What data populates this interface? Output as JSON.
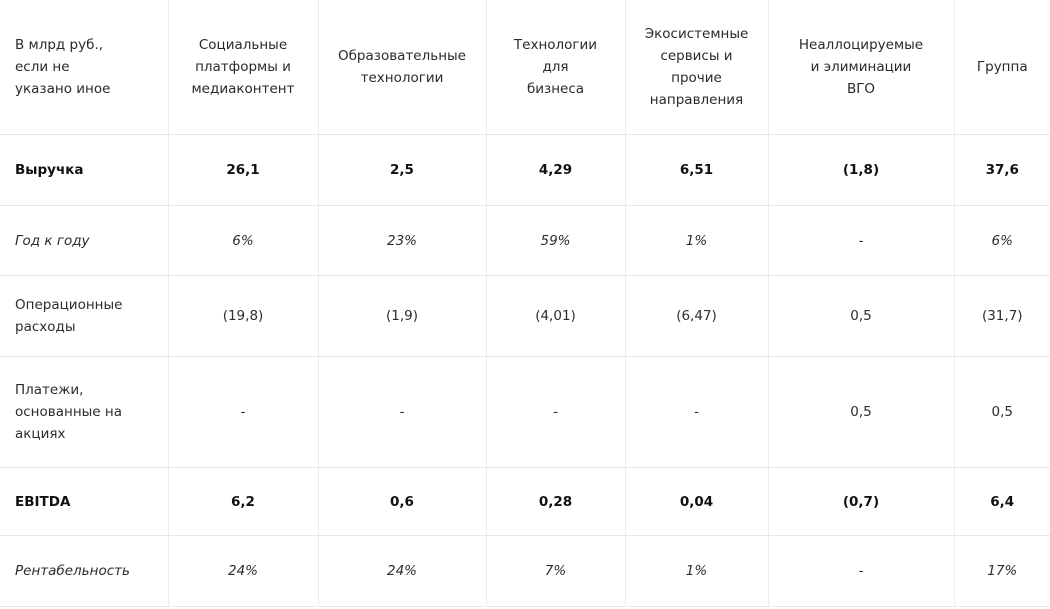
{
  "table": {
    "headers": [
      "В млрд руб.,\nесли не\nуказано иное",
      "Социальные\nплатформы и\nмедиаконтент",
      "Образовательные\nтехнологии",
      "Технологии\nдля\nбизнеса",
      "Экосистемные\nсервисы и\nпрочие\nнаправления",
      "Неаллоцируемые\nи элиминации\nВГО",
      "Группа"
    ],
    "rows": [
      {
        "label": "Выручка",
        "values": [
          "26,1",
          "2,5",
          "4,29",
          "6,51",
          "(1,8)",
          "37,6"
        ]
      },
      {
        "label": "Год к году",
        "values": [
          "6%",
          "23%",
          "59%",
          "1%",
          "-",
          "6%"
        ]
      },
      {
        "label": "Операционные\nрасходы",
        "values": [
          "(19,8)",
          "(1,9)",
          "(4,01)",
          "(6,47)",
          "0,5",
          "(31,7)"
        ]
      },
      {
        "label": "Платежи,\nоснованные на\nакциях",
        "values": [
          "-",
          "-",
          "-",
          "-",
          "0,5",
          "0,5"
        ]
      },
      {
        "label": "EBITDA",
        "values": [
          "6,2",
          "0,6",
          "0,28",
          "0,04",
          "(0,7)",
          "6,4"
        ]
      },
      {
        "label": "Рентабельность",
        "values": [
          "24%",
          "24%",
          "7%",
          "1%",
          "-",
          "17%"
        ]
      }
    ]
  }
}
